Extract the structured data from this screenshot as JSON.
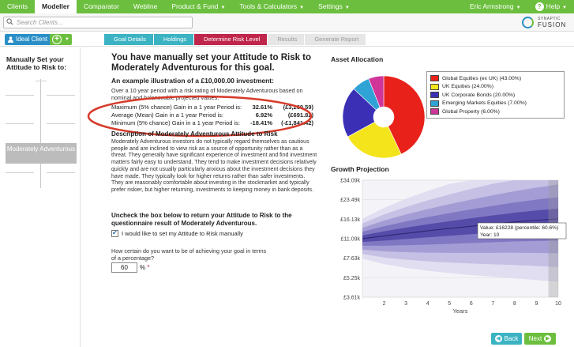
{
  "nav": {
    "items": [
      "Clients",
      "Modeller",
      "Comparator",
      "Webline",
      "Product & Fund",
      "Tools & Calculators",
      "Settings"
    ],
    "active": "Modeller",
    "user": "Eric Armstrong",
    "help": "Help"
  },
  "search": {
    "placeholder": "Search Clients..."
  },
  "logo": {
    "small": "SYNAPTIC",
    "big": "FUSION"
  },
  "toolbar": {
    "ideal_client": "Ideal Client",
    "steps": [
      {
        "label": "Goal Details",
        "state": "done"
      },
      {
        "label": "Holdings",
        "state": "done"
      },
      {
        "label": "Determine Risk Level",
        "state": "current"
      },
      {
        "label": "Results",
        "state": "todo"
      },
      {
        "label": "Generate Report",
        "state": "todo"
      }
    ]
  },
  "left": {
    "title": "Manually Set your Attitude to Risk to:",
    "selected": "Moderately Adventurous"
  },
  "main": {
    "heading": "You have manually set your Attitude to Risk to Moderately Adventurous for this goal.",
    "example_title": "An example illustration of a £10,000.00 investment:",
    "intro": "Over a 10 year period with a risk rating of Moderately Adventurous based on nominal and balanceable projected values.",
    "stats": [
      {
        "label": "Maximum (5% chance) Gain in a 1 year Period is:",
        "pct": "32.61%",
        "amount": "(£3,260.59)"
      },
      {
        "label": "Average (Mean) Gain in a 1 year Period is:",
        "pct": "6.92%",
        "amount": "(£691.82)"
      },
      {
        "label": "Minimum (5% chance) Gain in a 1 year Period is:",
        "pct": "-18.41%",
        "amount": "(-£1,841.42)"
      }
    ],
    "desc_title": "Description of Moderately Adventurous Attitude to Risk",
    "desc_text": "Moderately Adventurous investors do not typically regard themselves as cautious people and are inclined to view risk as a source of opportunity rather than as a threat. They generally have significant experience of investment and find investment matters fairly easy to understand. They tend to make investment decisions relatively quickly and are not usually particularly anxious about the investment decisions they have made. They typically look for higher returns rather than safer investments. They are reasonably comfortable about investing in the stockmarket and typically prefer riskier, but higher returning, investments to keeping money in bank deposits.",
    "uncheck_title": "Uncheck the box below to return your Attitude to Risk to the questionnaire result of Moderately Adventurous.",
    "checkbox_label": "I would like to set my Attitude to Risk manually",
    "certainty_question": "How certain do you want to be of achieving your goal in terms of a percentage?",
    "certainty_value": "60",
    "percent_sign": "%",
    "required_mark": "*"
  },
  "asset_allocation": {
    "title": "Asset Allocation",
    "legend": [
      {
        "label": "Global Equities (ex UK) (43.00%)",
        "value": 43,
        "color": "#e8211a"
      },
      {
        "label": "UK Equities (24.00%)",
        "value": 24,
        "color": "#f4e41c"
      },
      {
        "label": "UK Corporate Bonds (20.00%)",
        "value": 20,
        "color": "#3a2fb5"
      },
      {
        "label": "Emerging Markets Equities (7.00%)",
        "value": 7,
        "color": "#2fa3d6"
      },
      {
        "label": "Global Property (6.00%)",
        "value": 6,
        "color": "#d0359a"
      }
    ]
  },
  "growth": {
    "title": "Growth Projection",
    "xlabel": "Years",
    "y_ticks": [
      "£34.09k",
      "£23.49k",
      "£16.13k",
      "£11.09k",
      "£7.63k",
      "£5.25k",
      "£3.61k"
    ],
    "x_ticks": [
      "2",
      "3",
      "4",
      "5",
      "6",
      "7",
      "8",
      "9",
      "10"
    ],
    "tooltip_value": "Value: £16228 (percentile: 60.6%)",
    "tooltip_year": "Year: 10"
  },
  "chart_data": {
    "type": "area",
    "title": "Growth Projection",
    "xlabel": "Years",
    "ylabel": "",
    "x": [
      1,
      2,
      3,
      4,
      5,
      6,
      7,
      8,
      9,
      10
    ],
    "ylim": [
      3610,
      34090
    ],
    "y_scale": "log",
    "series": [
      {
        "values": [
          11090,
          11700,
          12300,
          12900,
          13500,
          14100,
          14700,
          15300,
          15800,
          16228
        ]
      }
    ]
  },
  "footer": {
    "back": "Back",
    "next": "Next"
  }
}
